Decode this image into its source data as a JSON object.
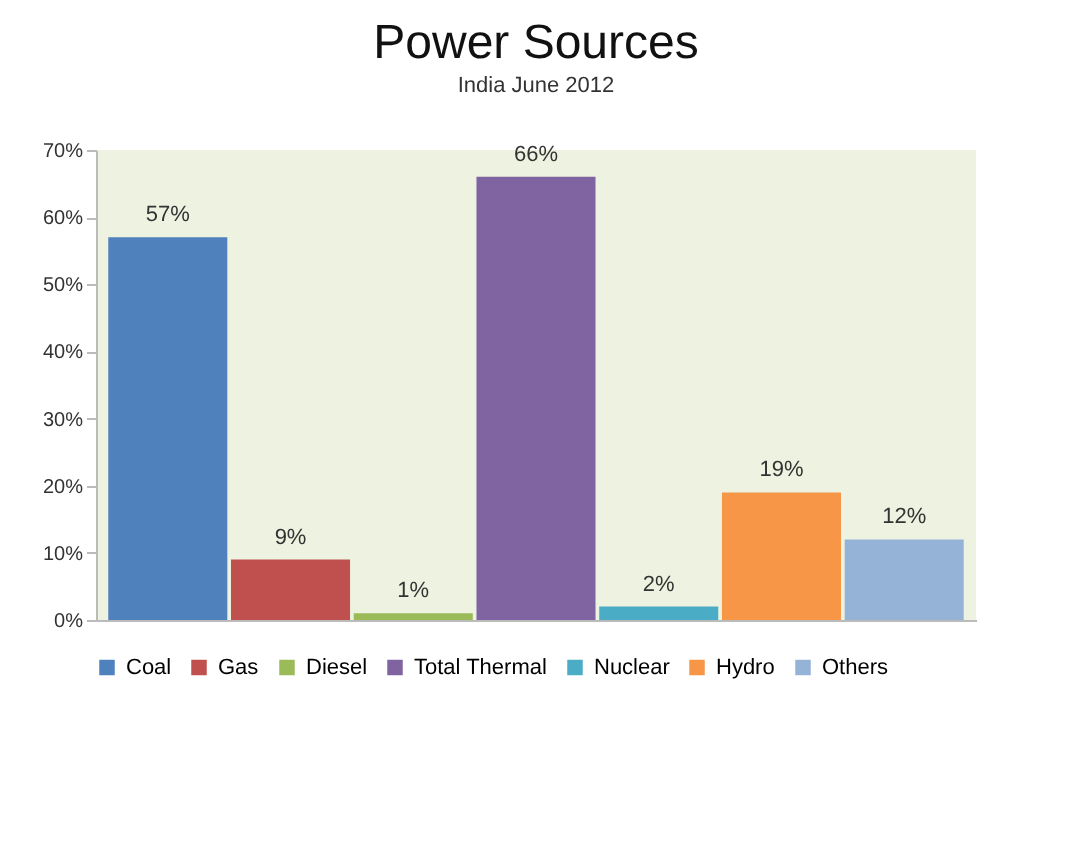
{
  "chart_data": {
    "type": "bar",
    "title": "Power Sources",
    "subtitle": "India June 2012",
    "categories": [
      null,
      null,
      null,
      null,
      null,
      null,
      null
    ],
    "stacked": true,
    "series": [
      {
        "name": "Coal",
        "color": "#4f81bd",
        "values": [
          57,
          null,
          null,
          null,
          null,
          null,
          null
        ],
        "value_labels": [
          "57%",
          null,
          null,
          null,
          null,
          null,
          null
        ]
      },
      {
        "name": "Gas",
        "color": "#c0504d",
        "values": [
          null,
          9,
          null,
          null,
          null,
          null,
          null
        ],
        "value_labels": [
          null,
          "9%",
          null,
          null,
          null,
          null,
          null
        ]
      },
      {
        "name": "Diesel",
        "color": "#9bbb59",
        "values": [
          null,
          null,
          1,
          null,
          null,
          null,
          null
        ],
        "value_labels": [
          null,
          null,
          "1%",
          null,
          null,
          null,
          null
        ]
      },
      {
        "name": "Total Thermal",
        "color": "#8064a2",
        "values": [
          null,
          null,
          null,
          66,
          null,
          null,
          null
        ],
        "value_labels": [
          null,
          null,
          null,
          "66%",
          null,
          null,
          null
        ]
      },
      {
        "name": "Nuclear",
        "color": "#4bacc6",
        "values": [
          null,
          null,
          null,
          null,
          2,
          null,
          null
        ],
        "value_labels": [
          null,
          null,
          null,
          null,
          "2%",
          null,
          null
        ]
      },
      {
        "name": "Hydro",
        "color": "#f79646",
        "values": [
          null,
          null,
          null,
          null,
          null,
          19,
          null
        ],
        "value_labels": [
          null,
          null,
          null,
          null,
          null,
          "19%",
          null
        ]
      },
      {
        "name": "Others",
        "color": "#95b3d7",
        "values": [
          null,
          null,
          null,
          null,
          null,
          null,
          12
        ],
        "value_labels": [
          null,
          null,
          null,
          null,
          null,
          null,
          "12%"
        ]
      }
    ],
    "ylim": [
      0,
      70
    ],
    "yticks": [
      {
        "value": 0,
        "label": "0%"
      },
      {
        "value": 10,
        "label": "10%"
      },
      {
        "value": 20,
        "label": "20%"
      },
      {
        "value": 30,
        "label": "30%"
      },
      {
        "value": 40,
        "label": "40%"
      },
      {
        "value": 50,
        "label": "50%"
      },
      {
        "value": 60,
        "label": "60%"
      },
      {
        "value": 70,
        "label": "70%"
      }
    ],
    "legend": "bottom",
    "tick_labels": "y",
    "grid": false
  }
}
